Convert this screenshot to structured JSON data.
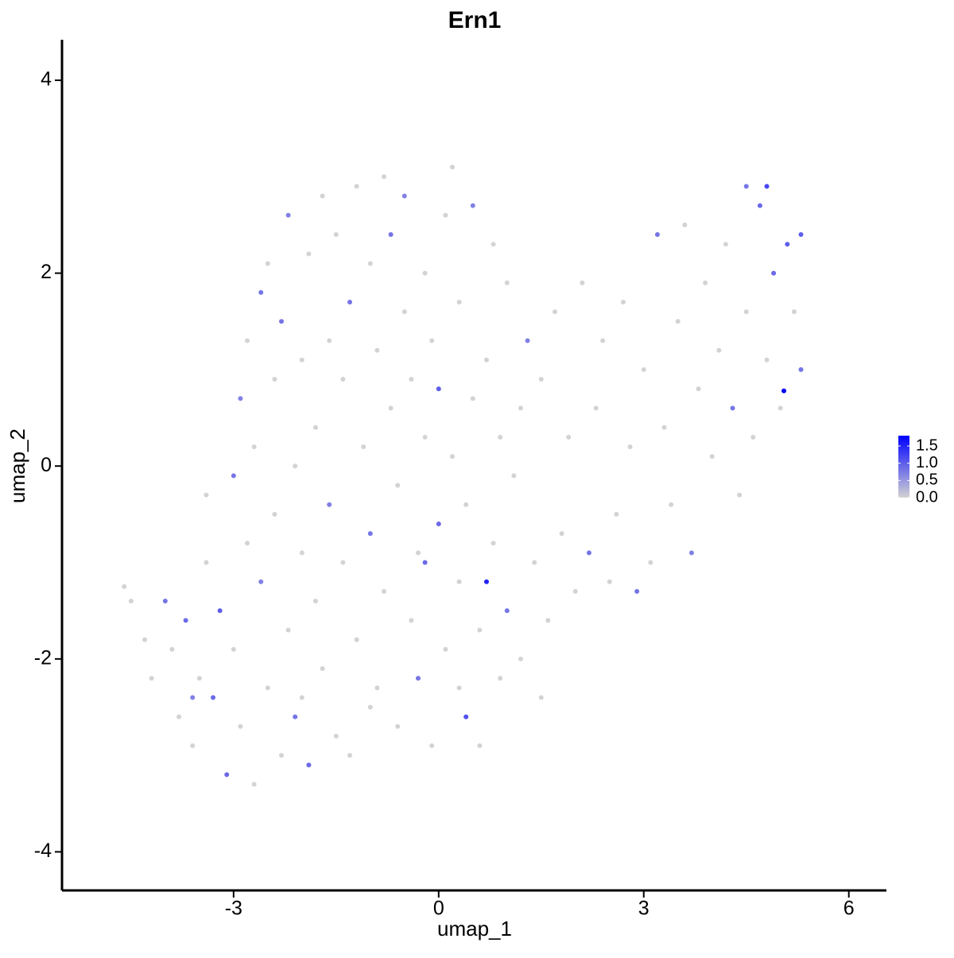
{
  "chart_data": {
    "type": "scatter",
    "title": "Ern1",
    "x_label": "umap_1",
    "y_label": "umap_2",
    "xlim": [
      -5.51,
      6.55
    ],
    "ylim": [
      -4.4,
      4.42
    ],
    "xticks": [
      -3,
      0,
      3,
      6
    ],
    "yticks": [
      -4,
      -2,
      0,
      2,
      4
    ],
    "color_low": "#d3d3d3",
    "color_high": "#0000ff",
    "clim": [
      0,
      1.8
    ],
    "cticks": [
      {
        "value": 0,
        "label": "0.0"
      },
      {
        "value": 0.5,
        "label": "0.5"
      },
      {
        "value": 1,
        "label": "1.0"
      },
      {
        "value": 1.5,
        "label": "1.5"
      }
    ],
    "x": [
      -4.6,
      -4.5,
      -4.3,
      -4.2,
      -4.0,
      -3.9,
      -3.8,
      -3.7,
      -3.6,
      -3.5,
      -3.4,
      -3.4,
      -3.3,
      -3.2,
      -3.1,
      -3.0,
      -3.0,
      -2.9,
      -2.9,
      -2.8,
      -2.8,
      -2.7,
      -2.7,
      -2.6,
      -2.6,
      -2.5,
      -2.5,
      -2.4,
      -2.4,
      -2.3,
      -2.3,
      -2.2,
      -2.2,
      -2.1,
      -2.1,
      -2.0,
      -2.0,
      -1.9,
      -1.9,
      -1.8,
      -1.8,
      -1.7,
      -1.7,
      -1.6,
      -1.6,
      -1.5,
      -1.5,
      -1.4,
      -1.4,
      -1.3,
      -1.3,
      -1.2,
      -1.2,
      -1.1,
      -1.0,
      -1.0,
      -0.9,
      -0.9,
      -0.8,
      -0.8,
      -0.7,
      -0.7,
      -0.6,
      -0.6,
      -0.5,
      -0.5,
      -0.4,
      -0.4,
      -0.3,
      -0.3,
      -0.2,
      -0.2,
      -0.1,
      -0.1,
      0,
      0,
      0.1,
      0.1,
      0.2,
      0.2,
      0.3,
      0.3,
      0.4,
      0.4,
      0.5,
      0.5,
      0.6,
      0.6,
      0.7,
      0.7,
      0.8,
      0.8,
      0.9,
      0.9,
      1.0,
      1.0,
      1.1,
      1.2,
      1.2,
      1.3,
      1.4,
      1.5,
      1.6,
      1.7,
      1.8,
      1.9,
      2.0,
      2.1,
      2.2,
      2.3,
      2.4,
      2.5,
      2.6,
      2.7,
      2.8,
      2.9,
      3.0,
      3.1,
      3.2,
      3.3,
      3.4,
      3.5,
      3.6,
      3.7,
      3.8,
      3.9,
      4.0,
      4.1,
      4.2,
      4.3,
      4.4,
      4.5,
      4.5,
      4.6,
      4.7,
      4.8,
      4.8,
      4.9,
      5.0,
      5.05,
      5.1,
      5.2,
      5.3,
      5.3,
      -3.6,
      -2.0,
      -1.0,
      -0.2,
      0.3,
      1.5
    ],
    "y": [
      -1.25,
      -1.4,
      -1.8,
      -2.2,
      -1.4,
      -1.9,
      -2.6,
      -1.6,
      -2.9,
      -2.2,
      -0.3,
      -1.0,
      -2.4,
      -1.5,
      -3.2,
      -0.1,
      -1.9,
      -2.7,
      0.7,
      -0.8,
      1.3,
      -3.3,
      0.2,
      -1.2,
      1.8,
      -2.3,
      2.1,
      -0.5,
      0.9,
      -3.0,
      1.5,
      -1.7,
      2.6,
      0,
      -2.6,
      1.1,
      -0.9,
      2.2,
      -3.1,
      0.4,
      -1.4,
      2.8,
      -2.1,
      1.3,
      -0.4,
      2.4,
      -2.8,
      0.9,
      -1.0,
      -3.0,
      1.7,
      2.9,
      -1.8,
      0.2,
      -0.7,
      2.1,
      -2.3,
      1.2,
      3.0,
      -1.3,
      0.6,
      2.4,
      -2.7,
      -0.2,
      1.6,
      2.8,
      -1.6,
      0.9,
      -2.2,
      -0.9,
      2.0,
      0.3,
      -2.9,
      1.3,
      0.8,
      -0.6,
      2.6,
      -1.9,
      3.1,
      0.1,
      -1.2,
      1.7,
      -2.6,
      -0.4,
      2.7,
      0.7,
      -1.7,
      -2.9,
      1.1,
      -1.2,
      -0.8,
      2.3,
      0.3,
      -2.2,
      1.9,
      -1.5,
      -0.1,
      0.6,
      -2.0,
      1.3,
      -1.0,
      0.9,
      -1.6,
      1.6,
      -0.7,
      0.3,
      -1.3,
      1.9,
      -0.9,
      0.6,
      1.3,
      -1.2,
      -0.5,
      1.7,
      0.2,
      -1.3,
      1.0,
      -1.0,
      2.4,
      0.4,
      -0.4,
      1.5,
      2.5,
      -0.9,
      0.8,
      1.9,
      0.1,
      1.2,
      2.3,
      0.6,
      -0.3,
      2.9,
      1.6,
      0.3,
      2.7,
      1.1,
      2.9,
      2.0,
      0.6,
      0.78,
      2.3,
      1.6,
      2.4,
      1.0,
      -2.4,
      -2.4,
      -2.5,
      -1.0,
      -2.3,
      -2.4
    ],
    "values": [
      0,
      0,
      0,
      0,
      0.8,
      0,
      0,
      0.9,
      0,
      0,
      0,
      0,
      0.9,
      1.0,
      0.9,
      0.8,
      0,
      0,
      0.7,
      0,
      0,
      0,
      0,
      0.7,
      0.8,
      0,
      0,
      0,
      0,
      0,
      0.8,
      0,
      0.7,
      0,
      0.8,
      0,
      0,
      0,
      0.9,
      0,
      0,
      0,
      0,
      0,
      0.7,
      0,
      0,
      0,
      0,
      0,
      0.8,
      0,
      0,
      0,
      0.8,
      0,
      0,
      0,
      0,
      0,
      0,
      0.8,
      0,
      0,
      0,
      0.7,
      0,
      0,
      0.8,
      0,
      0,
      0,
      0,
      0,
      1.0,
      0.9,
      0,
      0,
      0,
      0,
      0,
      0,
      1.1,
      0,
      0.7,
      0,
      0,
      0,
      0,
      1.5,
      0,
      0,
      0,
      0,
      0,
      0.8,
      0,
      0,
      0,
      0.7,
      0,
      0,
      0,
      0,
      0,
      0,
      0,
      0,
      0.8,
      0,
      0,
      0,
      0,
      0,
      0,
      0.8,
      0,
      0,
      0.8,
      0,
      0,
      0,
      0,
      0.7,
      0,
      0,
      0,
      0,
      0,
      0.8,
      0,
      0.8,
      0,
      0,
      0.9,
      0,
      1.2,
      0.9,
      0,
      1.8,
      1.0,
      0,
      1.0,
      0.8,
      0.7,
      0,
      0,
      0.9,
      0,
      0
    ]
  }
}
